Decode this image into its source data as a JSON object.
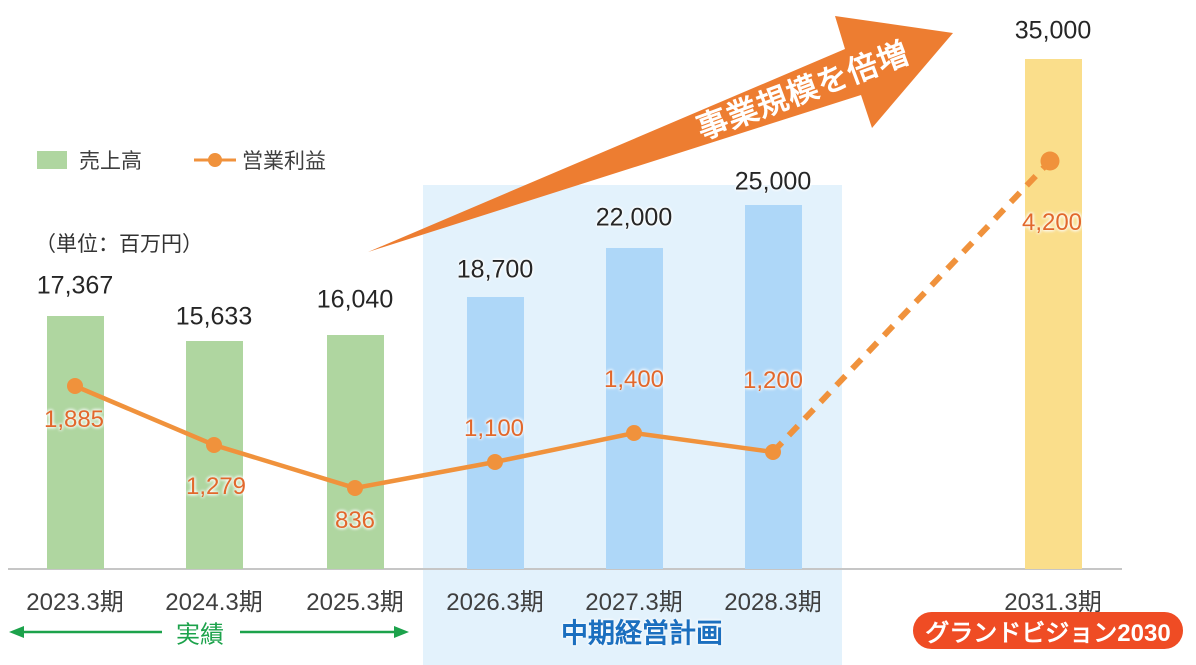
{
  "unit_note": "（単位：百万円）",
  "colors": {
    "bar_green": "#AFD6A0",
    "bar_blue": "#AED7F8",
    "bar_yellow": "#FADE8B",
    "band_blue": "#E3F2FC",
    "line_orange": "#F0923C",
    "value_orange": "#E2682C",
    "arrow_orange": "#ED7D31",
    "badge_red": "#EF4C24",
    "accent_green": "#1CA24B",
    "accent_blue": "#1B6FBF",
    "axis_gray": "#C6C6C6",
    "text_dark": "#262626"
  },
  "chart_data": {
    "type": "bar",
    "subtype": "bar+line combo",
    "unit": "百万円",
    "annotation": "事業規模を倍増",
    "categories": [
      "2023.3期",
      "2024.3期",
      "2025.3期",
      "2026.3期",
      "2027.3期",
      "2028.3期",
      "2031.3期"
    ],
    "series": [
      {
        "name": "売上高",
        "type": "bar",
        "values": [
          17367,
          15633,
          16040,
          18700,
          22000,
          25000,
          35000
        ],
        "labels": [
          "17,367",
          "15,633",
          "16,040",
          "18,700",
          "22,000",
          "25,000",
          "35,000"
        ],
        "segment": [
          "actual",
          "actual",
          "actual",
          "plan",
          "plan",
          "plan",
          "vision"
        ]
      },
      {
        "name": "営業利益",
        "type": "line",
        "values": [
          1885,
          1279,
          836,
          1100,
          1400,
          1200,
          4200
        ],
        "labels": [
          "1,885",
          "1,279",
          "836",
          "1,100",
          "1,400",
          "1,200",
          "4,200"
        ],
        "dashed_from_index": 5
      }
    ],
    "periods": [
      {
        "label": "実績",
        "categories": [
          "2023.3期",
          "2024.3期",
          "2025.3期"
        ]
      },
      {
        "label": "中期経営計画",
        "categories": [
          "2026.3期",
          "2027.3期",
          "2028.3期"
        ]
      },
      {
        "label": "グランドビジョン2030",
        "categories": [
          "2031.3期"
        ]
      }
    ],
    "legend_position": "top-left",
    "grid": false,
    "ylim_bar": [
      0,
      38000
    ],
    "ylim_line": [
      0,
      5850
    ]
  }
}
